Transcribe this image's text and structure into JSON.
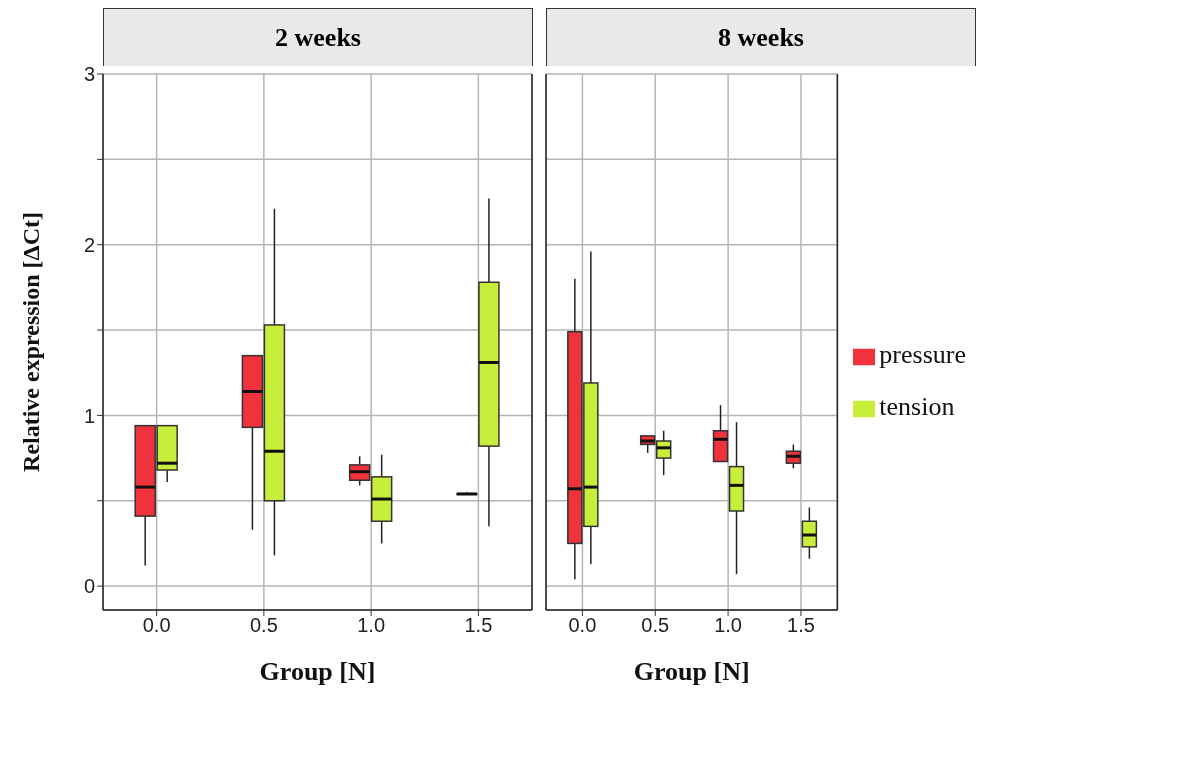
{
  "chart_data": [
    {
      "type": "box",
      "title": "2 weeks",
      "xlabel": "Group [N]",
      "ylabel": "Relative expression [ΔCt]",
      "categories": [
        "0.0",
        "0.5",
        "1.0",
        "1.5"
      ],
      "ylim": [
        -0.14,
        3.0
      ],
      "yticks": [
        0,
        {
          "value": 0.5,
          "label": null
        },
        1,
        {
          "value": 1.5,
          "label": null
        },
        2,
        {
          "value": 2.5,
          "label": null
        },
        3
      ],
      "grid": true,
      "legend": false,
      "series": [
        {
          "color": "#f0323c",
          "boxes": [
            {
              "low": 0.12,
              "q1": 0.41,
              "median": 0.58,
              "q3": 0.94,
              "high": 0.94
            },
            {
              "low": 0.33,
              "q1": 0.93,
              "median": 1.14,
              "q3": 1.35,
              "high": 1.35
            },
            {
              "low": 0.59,
              "q1": 0.62,
              "median": 0.67,
              "q3": 0.71,
              "high": 0.76
            },
            {
              "low": 0.54,
              "q1": 0.54,
              "median": 0.54,
              "q3": 0.54,
              "high": 0.55
            }
          ]
        },
        {
          "color": "#c8ee3c",
          "boxes": [
            {
              "low": 0.61,
              "q1": 0.68,
              "median": 0.72,
              "q3": 0.94,
              "high": 0.94
            },
            {
              "low": 0.18,
              "q1": 0.5,
              "median": 0.79,
              "q3": 1.53,
              "high": 2.21
            },
            {
              "low": 0.25,
              "q1": 0.38,
              "median": 0.51,
              "q3": 0.64,
              "high": 0.77
            },
            {
              "low": 0.35,
              "q1": 0.82,
              "median": 1.31,
              "q3": 1.78,
              "high": 2.27
            }
          ]
        }
      ]
    },
    {
      "type": "box",
      "title": "8 weeks",
      "xlabel": "Group [N]",
      "categories": [
        "0.0",
        "0.5",
        "1.0",
        "1.5"
      ],
      "ylim": [
        -0.14,
        3.0
      ],
      "yticks": [
        0,
        {
          "value": 0.5,
          "label": null
        },
        1,
        {
          "value": 1.5,
          "label": null
        },
        2,
        {
          "value": 2.5,
          "label": null
        },
        3
      ],
      "grid": true,
      "legend": "right",
      "tick_labels": "x",
      "series": [
        {
          "name": "pressure",
          "color": "#f0323c",
          "boxes": [
            {
              "low": 0.04,
              "q1": 0.25,
              "median": 0.57,
              "q3": 1.49,
              "high": 1.8
            },
            {
              "low": 0.78,
              "q1": 0.83,
              "median": 0.85,
              "q3": 0.88,
              "high": 0.88
            },
            {
              "low": 0.73,
              "q1": 0.73,
              "median": 0.86,
              "q3": 0.91,
              "high": 1.06
            },
            {
              "low": 0.69,
              "q1": 0.72,
              "median": 0.76,
              "q3": 0.79,
              "high": 0.83
            }
          ]
        },
        {
          "name": "tension",
          "color": "#c8ee3c",
          "boxes": [
            {
              "low": 0.13,
              "q1": 0.35,
              "median": 0.58,
              "q3": 1.19,
              "high": 1.96
            },
            {
              "low": 0.65,
              "q1": 0.75,
              "median": 0.81,
              "q3": 0.85,
              "high": 0.91
            },
            {
              "low": 0.07,
              "q1": 0.44,
              "median": 0.59,
              "q3": 0.7,
              "high": 0.96
            },
            {
              "low": 0.16,
              "q1": 0.23,
              "median": 0.3,
              "q3": 0.38,
              "high": 0.46
            }
          ]
        }
      ]
    }
  ]
}
